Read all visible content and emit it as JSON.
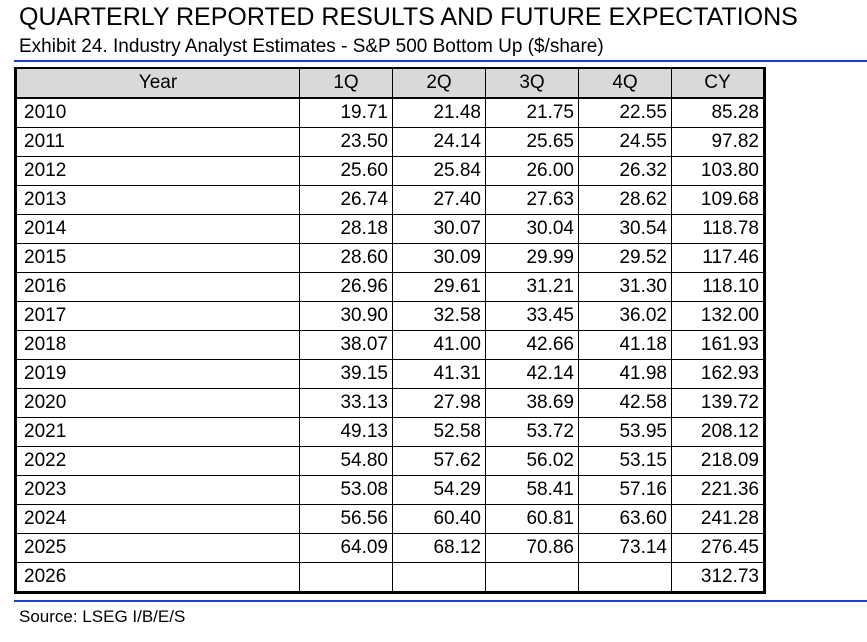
{
  "title": "QUARTERLY REPORTED RESULTS AND FUTURE EXPECTATIONS",
  "subtitle": "Exhibit 24. Industry Analyst Estimates - S&P 500 Bottom Up ($/share)",
  "table": {
    "headers": [
      "Year",
      "1Q",
      "2Q",
      "3Q",
      "4Q",
      "CY"
    ],
    "rows": [
      [
        "2010",
        "19.71",
        "21.48",
        "21.75",
        "22.55",
        "85.28"
      ],
      [
        "2011",
        "23.50",
        "24.14",
        "25.65",
        "24.55",
        "97.82"
      ],
      [
        "2012",
        "25.60",
        "25.84",
        "26.00",
        "26.32",
        "103.80"
      ],
      [
        "2013",
        "26.74",
        "27.40",
        "27.63",
        "28.62",
        "109.68"
      ],
      [
        "2014",
        "28.18",
        "30.07",
        "30.04",
        "30.54",
        "118.78"
      ],
      [
        "2015",
        "28.60",
        "30.09",
        "29.99",
        "29.52",
        "117.46"
      ],
      [
        "2016",
        "26.96",
        "29.61",
        "31.21",
        "31.30",
        "118.10"
      ],
      [
        "2017",
        "30.90",
        "32.58",
        "33.45",
        "36.02",
        "132.00"
      ],
      [
        "2018",
        "38.07",
        "41.00",
        "42.66",
        "41.18",
        "161.93"
      ],
      [
        "2019",
        "39.15",
        "41.31",
        "42.14",
        "41.98",
        "162.93"
      ],
      [
        "2020",
        "33.13",
        "27.98",
        "38.69",
        "42.58",
        "139.72"
      ],
      [
        "2021",
        "49.13",
        "52.58",
        "53.72",
        "53.95",
        "208.12"
      ],
      [
        "2022",
        "54.80",
        "57.62",
        "56.02",
        "53.15",
        "218.09"
      ],
      [
        "2023",
        "53.08",
        "54.29",
        "58.41",
        "57.16",
        "221.36"
      ],
      [
        "2024",
        "56.56",
        "60.40",
        "60.81",
        "63.60",
        "241.28"
      ],
      [
        "2025",
        "64.09",
        "68.12",
        "70.86",
        "73.14",
        "276.45"
      ],
      [
        "2026",
        "",
        "",
        "",
        "",
        "312.73"
      ]
    ]
  },
  "source": "Source: LSEG I/B/E/S",
  "colors": {
    "rule": "#1f3fd1",
    "header_bg": "#d9d9d9"
  }
}
